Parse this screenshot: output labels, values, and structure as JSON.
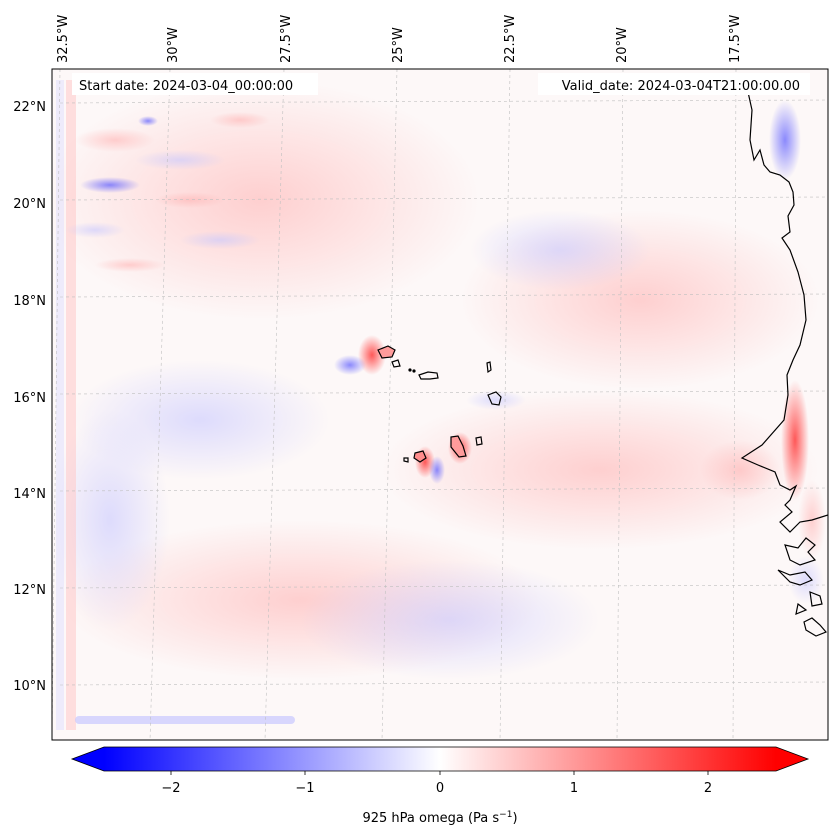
{
  "map": {
    "type": "filled-contour-map",
    "variable": "omega",
    "level": "925 hPa",
    "region": "Cabo Verde and West African coast",
    "start_date_label": "Start date: 2024-03-04_00:00:00",
    "valid_date_label": "Valid_date: 2024-03-04T21:00:00.00",
    "longitude_labels": [
      "32.5°W",
      "30°W",
      "27.5°W",
      "25°W",
      "22.5°W",
      "20°W",
      "17.5°W"
    ],
    "latitude_labels": [
      "22°N",
      "20°N",
      "18°N",
      "16°N",
      "14°N",
      "12°N",
      "10°N"
    ],
    "colorbar": {
      "label": "925 hPa omega (Pa s",
      "label_exponent": "−1",
      "label_close": ")",
      "ticks": [
        "−2",
        "−1",
        "0",
        "1",
        "2"
      ],
      "range": [
        -2.6,
        2.6
      ],
      "colors": {
        "min": "#0000ff",
        "mid": "#ffffff",
        "max": "#ff0000"
      }
    }
  }
}
